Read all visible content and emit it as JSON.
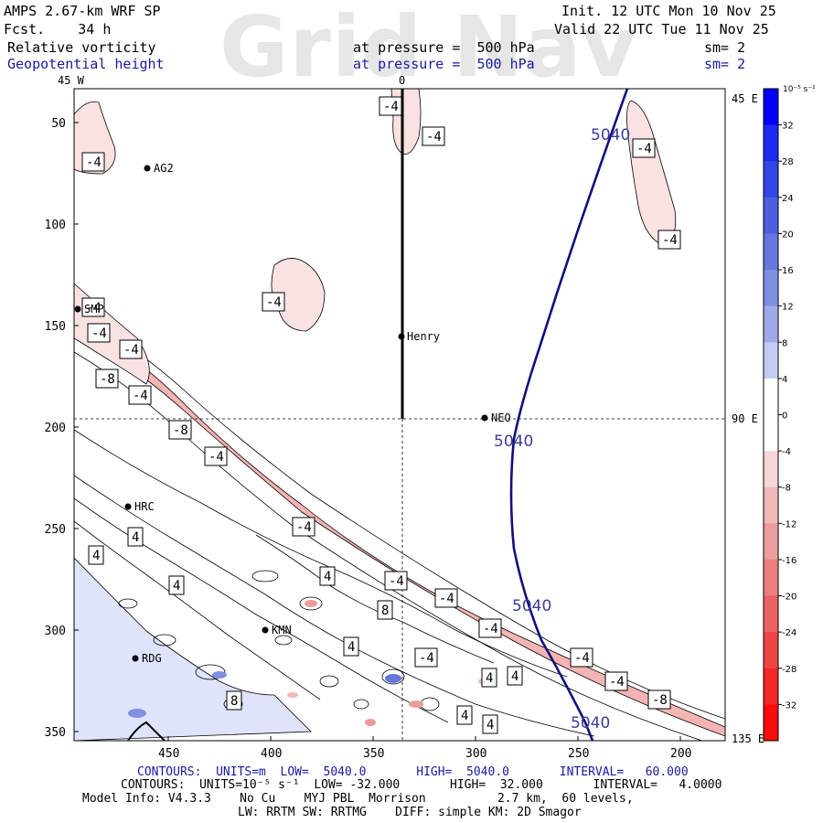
{
  "header": {
    "watermark": "Grid Nav",
    "model_title": "AMPS 2.67-km WRF SP",
    "fcst": "Fcst.    34 h",
    "init": "Init. 12 UTC Mon 10 Nov 25",
    "valid": "Valid 22 UTC Tue 11 Nov 25",
    "field1": {
      "name": "Relative vorticity",
      "pressure": "at pressure =  500 hPa",
      "sm": "sm= 2"
    },
    "field2": {
      "name": "Geopotential height",
      "pressure": "at pressure =  500 hPa",
      "sm": "sm= 2"
    }
  },
  "map": {
    "x_ticks": [
      "450",
      "400",
      "350",
      "300",
      "250",
      "200"
    ],
    "y_ticks": [
      "50",
      "100",
      "150",
      "200",
      "250",
      "300",
      "350"
    ],
    "lon_labels": {
      "top_left": "45 W",
      "top_center": "0",
      "right_top": "45 E",
      "right_mid": "90 E",
      "right_bottom": "135 E"
    },
    "stations": [
      {
        "id": "ag2",
        "name": "AG2"
      },
      {
        "id": "smp",
        "name": "SMP"
      },
      {
        "id": "henry",
        "name": "Henry"
      },
      {
        "id": "neo",
        "name": "NEO"
      },
      {
        "id": "hrc",
        "name": "HRC"
      },
      {
        "id": "kmn",
        "name": "KMN"
      },
      {
        "id": "rdg",
        "name": "RDG"
      }
    ],
    "height_contour_label": "5040",
    "vort_labels": [
      "-4",
      "-8",
      "4",
      "8"
    ]
  },
  "colorbar": {
    "unit": "10⁻⁵ s⁻¹",
    "ticks": [
      "32",
      "28",
      "24",
      "20",
      "16",
      "12",
      "8",
      "4",
      "0",
      "-4",
      "-8",
      "-12",
      "-16",
      "-20",
      "-24",
      "-28",
      "-32"
    ],
    "colors_top_to_bottom": [
      "#0000ff",
      "#1a2cf0",
      "#3346e6",
      "#4d5ee0",
      "#6676dc",
      "#8090e0",
      "#a0aae8",
      "#c4cbf2",
      "#ffffff",
      "#ffffff",
      "#f6d6d6",
      "#f0b8b8",
      "#ec9c9c",
      "#ea7f7f",
      "#ea6262",
      "#ee4444",
      "#f42626",
      "#fa0c0c"
    ]
  },
  "footer": {
    "line1": "CONTOURS:  UNITS=m  LOW=  5040.0       HIGH=  5040.0       INTERVAL=   60.000",
    "line2": "CONTOURS:  UNITS=10⁻⁵ s⁻¹  LOW= -32.000       HIGH=  32.000       INTERVAL=   4.0000",
    "line3": "Model Info: V4.3.3    No Cu    MYJ PBL  Morrison          2.7 km,  60 levels,",
    "line4": "LW: RRTM SW: RRTMG    DIFF: simple KM: 2D Smagor"
  }
}
